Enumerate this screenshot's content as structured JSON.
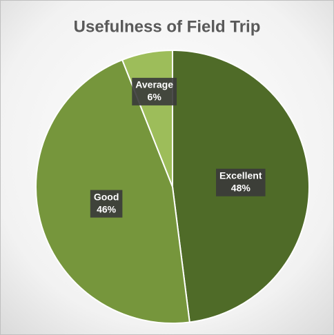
{
  "chart_data": {
    "type": "pie",
    "title": "Usefulness of Field Trip",
    "categories": [
      "Excellent",
      "Good",
      "Average"
    ],
    "values": [
      48,
      46,
      6
    ],
    "value_labels": [
      "48%",
      "46%",
      "6%"
    ],
    "colors": [
      "#4f6b28",
      "#76963c",
      "#9dbd5a"
    ]
  }
}
